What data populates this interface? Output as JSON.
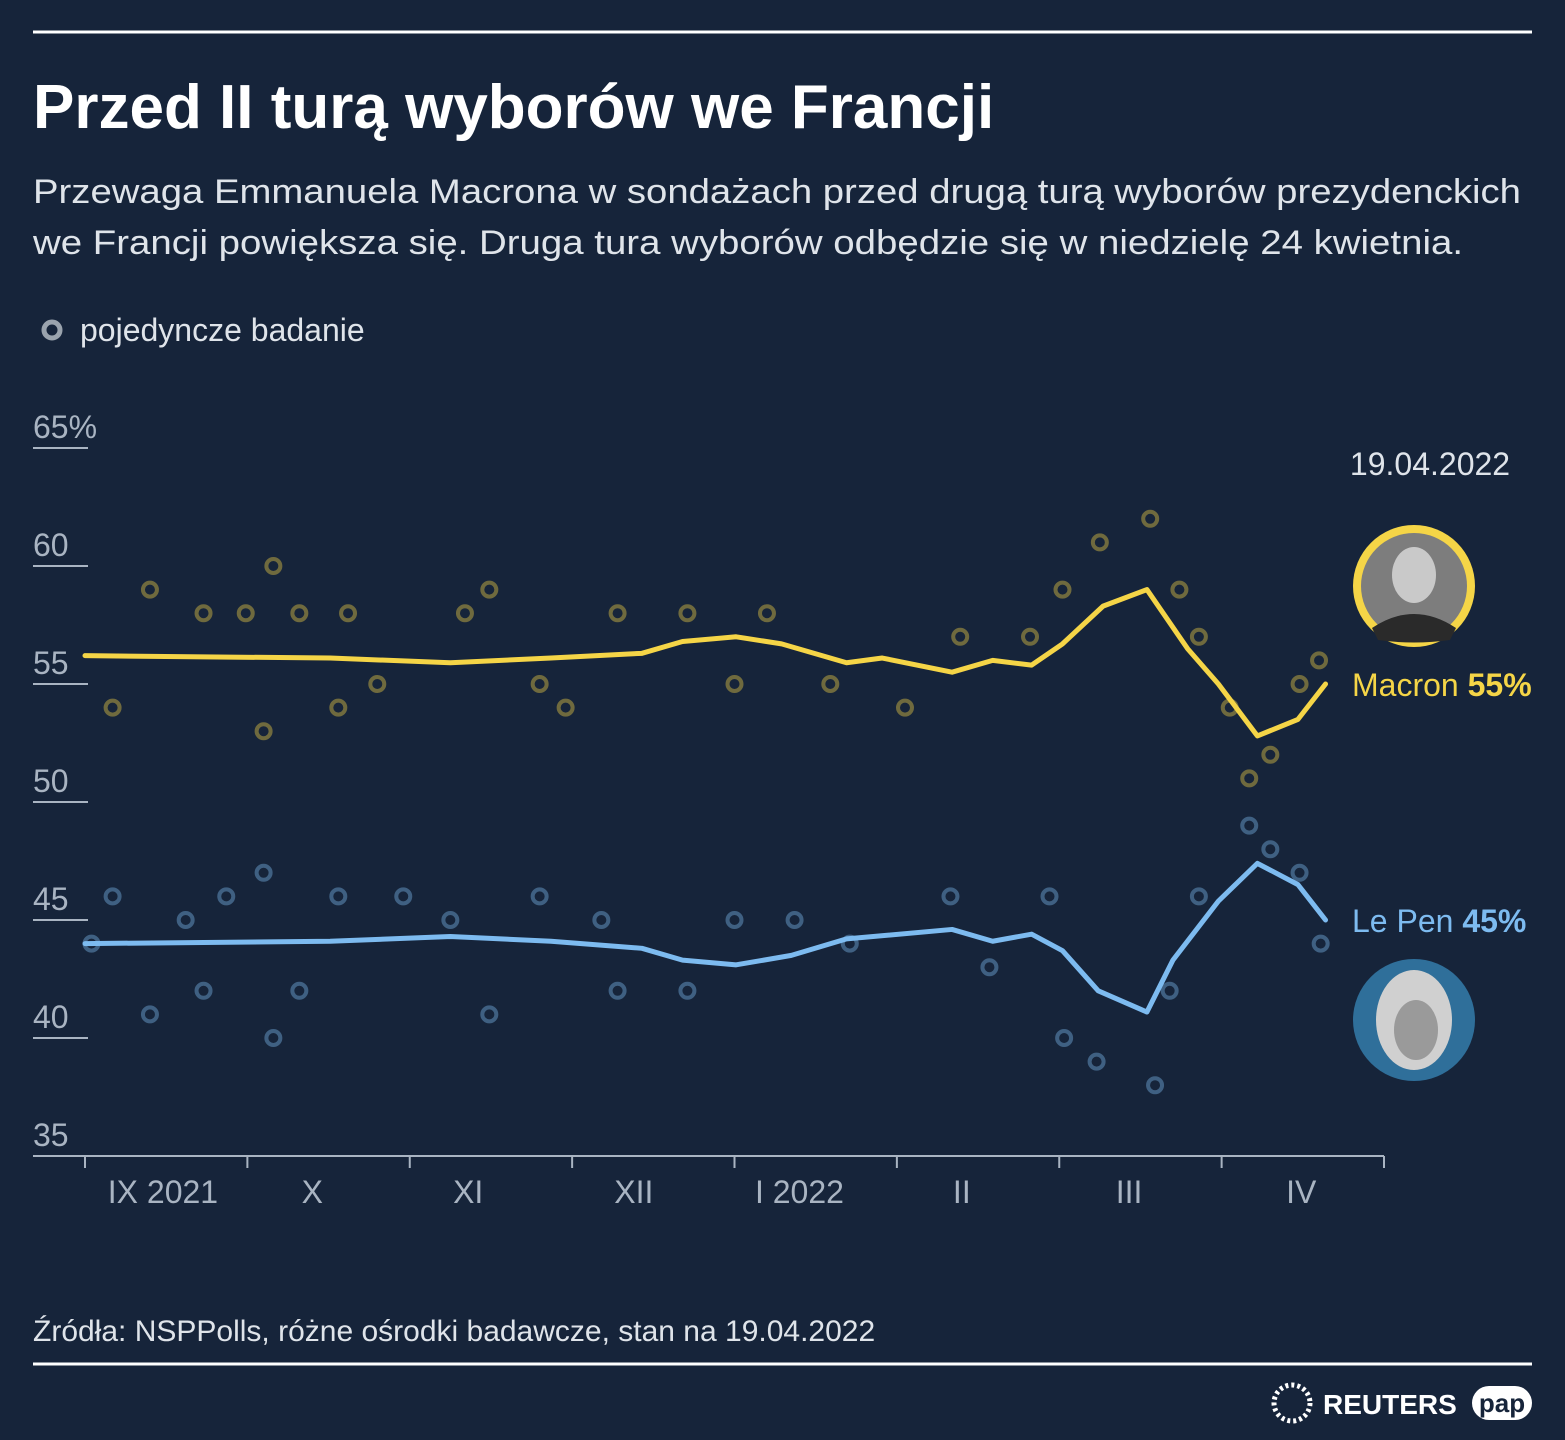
{
  "chart_data": {
    "type": "line",
    "title": "Przed II turą wyborów we Francji",
    "subtitle": [
      "Przewaga Emmanuela Macrona w sondażach przed drugą turą wyborów prezydenckich",
      "we Francji powiększa się. Druga tura wyborów odbędzie się w niedzielę 24 kwietnia."
    ],
    "date_label": "19.04.2022",
    "xlim": [
      0,
      8
    ],
    "xticks": [
      {
        "value": 0.48,
        "label": "IX 2021"
      },
      {
        "value": 1.4,
        "label": "X"
      },
      {
        "value": 2.36,
        "label": "XI"
      },
      {
        "value": 3.38,
        "label": "XII"
      },
      {
        "value": 4.4,
        "label": "I 2022"
      },
      {
        "value": 5.4,
        "label": "II"
      },
      {
        "value": 6.43,
        "label": "III"
      },
      {
        "value": 7.49,
        "label": "IV"
      }
    ],
    "xminor_ticks": [
      0,
      1,
      2,
      3,
      4,
      5,
      6,
      7,
      8
    ],
    "ylim": [
      35,
      65
    ],
    "yticks": [
      35,
      40,
      45,
      50,
      55,
      60,
      {
        "value": 65,
        "label": "65%"
      }
    ],
    "series": [
      {
        "name": "Macron",
        "color": "#f5d547",
        "x": [
          0,
          1.51,
          2.25,
          2.87,
          3.43,
          3.68,
          4.01,
          4.29,
          4.69,
          4.91,
          5.34,
          5.59,
          5.83,
          6.02,
          6.27,
          6.54,
          6.79,
          6.98,
          7.22,
          7.47,
          7.64
        ],
        "values": [
          56.2,
          56.1,
          55.9,
          56.1,
          56.3,
          56.8,
          57.0,
          56.7,
          55.9,
          56.1,
          55.5,
          56.0,
          55.8,
          56.7,
          58.3,
          59.0,
          56.5,
          55.0,
          52.8,
          53.5,
          55
        ],
        "value_labels": [
          null,
          null,
          null,
          null,
          null,
          null,
          null,
          null,
          null,
          null,
          null,
          null,
          null,
          null,
          null,
          null,
          null,
          null,
          null,
          null,
          "55%"
        ]
      },
      {
        "name": "Le Pen",
        "color": "#7dbbf0",
        "x": [
          0,
          1.51,
          2.25,
          2.87,
          3.43,
          3.68,
          4.01,
          4.35,
          4.69,
          5.34,
          5.59,
          5.83,
          6.02,
          6.24,
          6.54,
          6.7,
          6.98,
          7.22,
          7.47,
          7.64
        ],
        "values": [
          44.0,
          44.1,
          44.3,
          44.1,
          43.8,
          43.3,
          43.1,
          43.5,
          44.2,
          44.6,
          44.1,
          44.4,
          43.7,
          42.0,
          41.1,
          43.3,
          45.8,
          47.4,
          46.5,
          45
        ],
        "value_labels": [
          null,
          null,
          null,
          null,
          null,
          null,
          null,
          null,
          null,
          null,
          null,
          null,
          null,
          null,
          null,
          null,
          null,
          null,
          null,
          "45%"
        ]
      }
    ],
    "polls": {
      "name": "pojedyncze badanie",
      "legend_color": "#9aa3ad",
      "series": [
        {
          "color": "#f5d547",
          "x": [
            0.4,
            0.17,
            0.73,
            0.99,
            1.1,
            1.16,
            1.32,
            1.56,
            1.62,
            1.8,
            2.34,
            2.49,
            2.8,
            2.96,
            3.28,
            3.71,
            4.0,
            4.2,
            4.59,
            5.05,
            5.39,
            5.82,
            6.02,
            6.25,
            6.56,
            6.74,
            6.86,
            7.05,
            7.17,
            7.3,
            7.48,
            7.6
          ],
          "values": [
            59,
            54,
            58,
            58,
            53,
            60,
            58,
            54,
            58,
            55,
            58,
            59,
            55,
            54,
            58,
            58,
            55,
            58,
            55,
            54,
            57,
            57,
            59,
            61,
            62,
            59,
            57,
            54,
            51,
            52,
            55,
            56
          ]
        },
        {
          "color": "#7dbbf0",
          "x": [
            0.04,
            0.17,
            0.4,
            0.62,
            0.73,
            0.87,
            1.1,
            1.16,
            1.32,
            1.56,
            1.96,
            2.25,
            2.49,
            2.8,
            3.18,
            3.28,
            3.71,
            4.0,
            4.37,
            4.71,
            5.33,
            5.57,
            5.94,
            6.03,
            6.23,
            6.59,
            6.68,
            6.86,
            7.17,
            7.3,
            7.48,
            7.61
          ],
          "values": [
            44,
            46,
            41,
            45,
            42,
            46,
            47,
            40,
            42,
            46,
            46,
            45,
            41,
            46,
            45,
            42,
            42,
            45,
            45,
            44,
            46,
            43,
            46,
            40,
            39,
            38,
            42,
            46,
            49,
            48,
            47,
            44
          ]
        }
      ]
    }
  },
  "footer": {
    "source": "Źródła: NSPPolls, różne ośrodki badawcze, stan na 19.04.2022",
    "logos": [
      "REUTERS",
      "pap"
    ]
  }
}
